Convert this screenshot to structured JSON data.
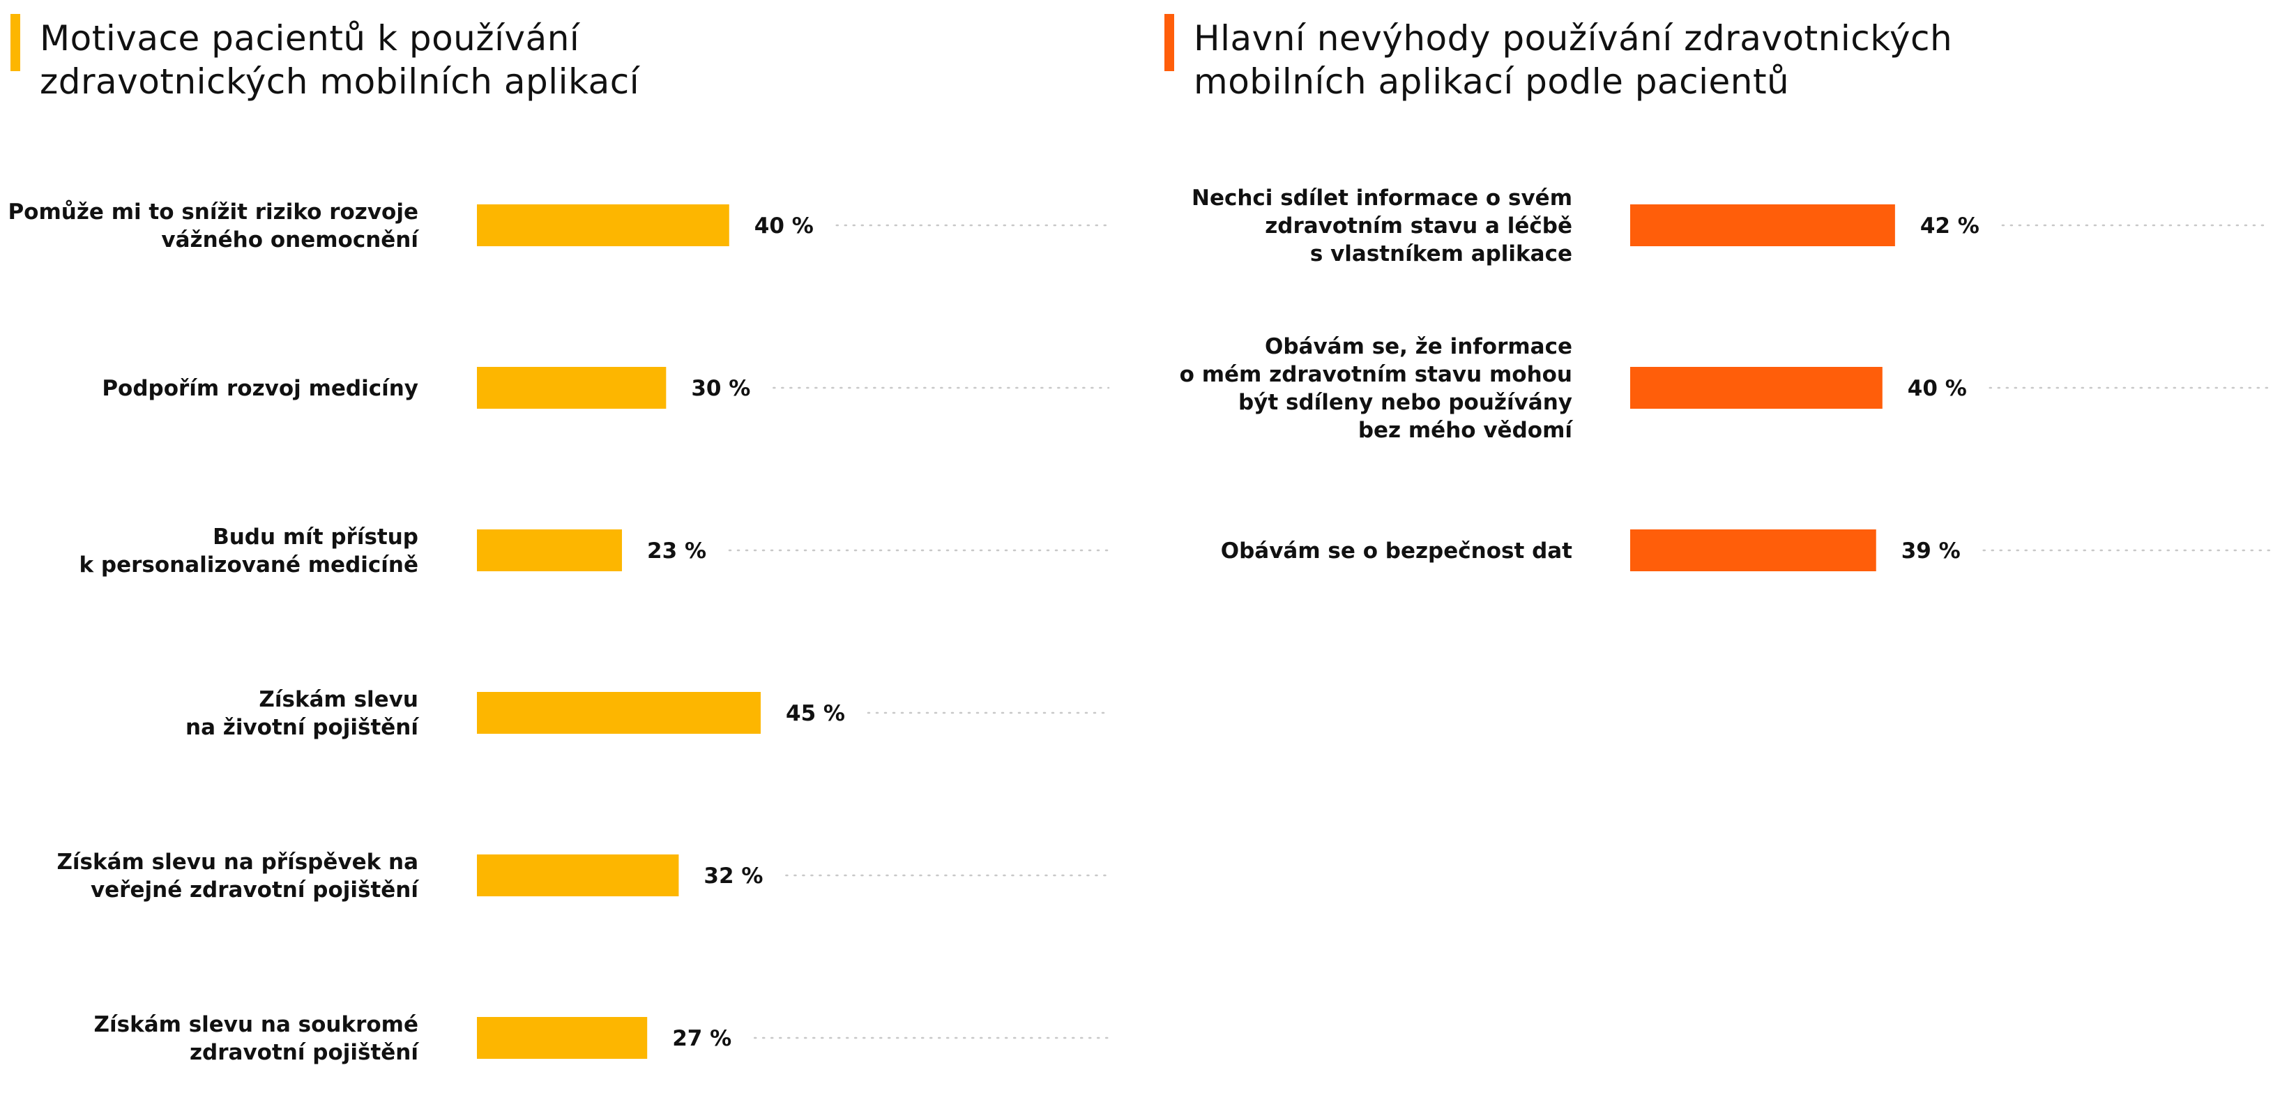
{
  "colors": {
    "left_accent": "#FDB600",
    "right_accent": "#FF5E0A",
    "leader": "#c8c8c8",
    "text": "#111111"
  },
  "value_suffix": " %",
  "chart_data": [
    {
      "type": "bar",
      "orientation": "horizontal",
      "title": "Motivace pacientů k používání zdravotnických mobilních aplikací",
      "title_lines": [
        "Motivace pacientů k používání",
        "zdravotnických mobilních aplikací"
      ],
      "color": "#FDB600",
      "xlim": [
        0,
        45
      ],
      "categories": [
        [
          "Pomůže mi to snížit riziko rozvoje",
          "vážného onemocnění"
        ],
        [
          "Podpořím rozvoj medicíny"
        ],
        [
          "Budu mít přístup",
          "k personalizované medicíně"
        ],
        [
          "Získám slevu",
          "na životní pojištění"
        ],
        [
          "Získám slevu na příspěvek na",
          "veřejné zdravotní pojištění"
        ],
        [
          "Získám slevu na soukromé",
          "zdravotní pojištění"
        ]
      ],
      "values": [
        40,
        30,
        23,
        45,
        32,
        27
      ]
    },
    {
      "type": "bar",
      "orientation": "horizontal",
      "title": "Hlavní nevýhody používání zdravotnických mobilních aplikací podle pacientů",
      "title_lines": [
        "Hlavní nevýhody používání zdravotnických",
        "mobilních aplikací podle pacientů"
      ],
      "color": "#FF5E0A",
      "xlim": [
        0,
        45
      ],
      "categories": [
        [
          "Nechci sdílet informace o svém",
          "zdravotním stavu a léčbě",
          "s vlastníkem aplikace"
        ],
        [
          "Obávám se, že informace",
          "o mém zdravotním stavu mohou",
          "být sdíleny nebo používány",
          "bez mého vědomí"
        ],
        [
          "Obávám se o bezpečnost dat"
        ]
      ],
      "values": [
        42,
        40,
        39
      ]
    }
  ]
}
